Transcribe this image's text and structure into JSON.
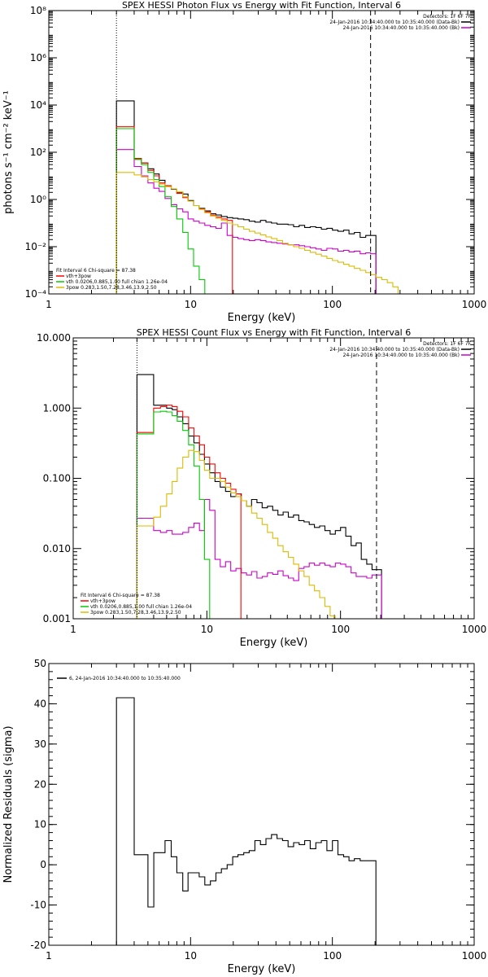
{
  "chart_data": [
    {
      "type": "line",
      "title": "SPEX HESSI Photon Flux vs Energy with Fit Function, Interval 6",
      "xlabel": "Energy (keV)",
      "ylabel": "photons s⁻¹ cm⁻² keV⁻¹",
      "xscale": "log",
      "yscale": "log",
      "xlim": [
        1,
        1000
      ],
      "ylim": [
        0.0001,
        100000000
      ],
      "xticks": [
        1,
        10,
        100,
        1000
      ],
      "xtick_labels": [
        "1",
        "10",
        "100",
        "1000"
      ],
      "yticks": [
        0.0001,
        0.01,
        1,
        100,
        10000,
        1000000,
        100000000
      ],
      "ytick_labels": [
        "10⁻⁴",
        "10⁻²",
        "10⁰",
        "10²",
        "10⁴",
        "10⁶",
        "10⁸"
      ],
      "vlines": [
        {
          "x": 3,
          "style": "dotted"
        },
        {
          "x": 186,
          "style": "dashed"
        }
      ],
      "legend_top": [
        "Detectors: 1F 6F 7F",
        "24-Jan-2016 10:34:40.000 to 10:35:40.000 (Data-Bk)",
        "24-Jan-2016 10:34:40.000 to 10:35:40.000 (Bk)"
      ],
      "legend_bottom": [
        "Fit Interval 6   Chi-square = 87.38",
        "vth+3pow",
        "vth 0.0206,0.885,1.00  full chian 1.26e-04",
        "3pow 0.283,1.50,7.28,3.46,13.9,2.50"
      ],
      "series": [
        {
          "name": "24-Jan-2016 10:34:40.000 to 10:35:40.000 (Data-Bk)",
          "color": "#000000",
          "x": [
            3.0,
            4.0,
            4.5,
            5.0,
            5.5,
            6.0,
            6.6,
            7.3,
            8.0,
            8.8,
            9.6,
            10.5,
            11.5,
            12.6,
            13.8,
            15.1,
            16.5,
            18.1,
            19.8,
            21.6,
            23.7,
            25.9,
            28.4,
            31.1,
            34.0,
            37.2,
            40.7,
            44.5,
            48.7,
            53.3,
            58.3,
            63.8,
            69.8,
            76.4,
            83.6,
            91.5,
            100,
            109.5,
            120,
            131,
            143,
            157,
            172,
            186
          ],
          "y": [
            15000,
            50,
            35,
            20,
            12,
            6.5,
            3.8,
            2.7,
            2.0,
            1.7,
            0.9,
            0.55,
            0.42,
            0.33,
            0.25,
            0.22,
            0.19,
            0.17,
            0.16,
            0.15,
            0.14,
            0.12,
            0.11,
            0.13,
            0.11,
            0.1,
            0.09,
            0.09,
            0.085,
            0.07,
            0.08,
            0.065,
            0.07,
            0.065,
            0.055,
            0.06,
            0.05,
            0.045,
            0.05,
            0.035,
            0.04,
            0.025,
            0.03,
            0.03
          ]
        },
        {
          "name": "24-Jan-2016 10:34:40.000 to 10:35:40.000 (Bk)",
          "color": "#cc00cc",
          "x": [
            3.0,
            4.0,
            4.5,
            5.0,
            5.5,
            6.0,
            6.6,
            7.3,
            8.0,
            8.8,
            9.6,
            10.5,
            11.5,
            12.6,
            13.8,
            15.1,
            16.5,
            18.1,
            19.8,
            21.6,
            23.7,
            25.9,
            28.4,
            31.1,
            34.0,
            37.2,
            40.7,
            44.5,
            48.7,
            53.3,
            58.3,
            63.8,
            69.8,
            76.4,
            83.6,
            91.5,
            100,
            109.5,
            120,
            131,
            143,
            157,
            172,
            186
          ],
          "y": [
            130,
            25,
            10,
            5,
            3,
            2.2,
            1.1,
            0.6,
            0.4,
            0.3,
            0.15,
            0.12,
            0.1,
            0.08,
            0.07,
            0.06,
            0.1,
            0.03,
            0.025,
            0.022,
            0.02,
            0.018,
            0.02,
            0.018,
            0.016,
            0.015,
            0.014,
            0.013,
            0.012,
            0.012,
            0.011,
            0.01,
            0.009,
            0.008,
            0.007,
            0.0085,
            0.008,
            0.0065,
            0.007,
            0.006,
            0.0065,
            0.005,
            0.0055,
            0.005
          ]
        },
        {
          "name": "vth+3pow",
          "color": "#ff0000",
          "x": [
            3.0,
            4.0,
            4.5,
            5.0,
            5.5,
            6.0,
            6.6,
            7.3,
            8.0,
            8.8,
            9.6,
            10.5,
            11.5,
            12.6,
            13.8,
            15.1,
            16.5,
            18.1
          ],
          "y": [
            1200,
            55,
            35,
            17,
            10,
            5,
            3.8,
            2.8,
            1.8,
            1.2,
            0.85,
            0.55,
            0.4,
            0.3,
            0.22,
            0.18,
            0.15,
            0.13
          ]
        },
        {
          "name": "vth",
          "color": "#00cc00",
          "x": [
            3.0,
            4.0,
            4.5,
            5.0,
            5.5,
            6.0,
            6.6,
            7.3,
            8.0,
            8.8,
            9.6,
            10.5,
            11.5,
            12.6,
            13.8
          ],
          "y": [
            1000,
            50,
            30,
            14,
            7,
            3.5,
            1.3,
            0.5,
            0.15,
            0.04,
            0.008,
            0.0015,
            0.0004,
            0.0001,
            0.0001
          ]
        },
        {
          "name": "3pow",
          "color": "#ddbb00",
          "x": [
            3.0,
            4.0,
            4.5,
            5.0,
            5.5,
            6.0,
            6.6,
            7.3,
            8.0,
            8.8,
            9.6,
            10.5,
            11.5,
            12.6,
            13.8,
            15.1,
            16.5,
            18.1,
            19.8,
            21.6,
            23.7,
            25.9,
            28.4,
            31.1,
            34.0,
            37.2,
            40.7,
            44.5,
            48.7,
            53.3,
            58.3,
            63.8,
            69.8,
            76.4,
            83.6,
            91.5,
            100,
            109.5,
            120,
            131,
            143,
            157,
            172,
            186,
            204,
            223,
            244,
            267
          ],
          "y": [
            14,
            11,
            9,
            7,
            5.5,
            4.5,
            3.5,
            2.8,
            2.1,
            1.3,
            0.85,
            0.55,
            0.38,
            0.27,
            0.2,
            0.16,
            0.13,
            0.1,
            0.085,
            0.07,
            0.055,
            0.045,
            0.038,
            0.032,
            0.026,
            0.022,
            0.018,
            0.014,
            0.012,
            0.01,
            0.0085,
            0.007,
            0.0058,
            0.0048,
            0.004,
            0.0032,
            0.0026,
            0.0022,
            0.0018,
            0.0015,
            0.0012,
            0.001,
            0.0008,
            0.00065,
            0.0005,
            0.0004,
            0.0003,
            0.0002
          ]
        }
      ]
    },
    {
      "type": "line",
      "title": "SPEX HESSI Count Flux vs Energy with Fit Function, Interval 6",
      "xlabel": "Energy (keV)",
      "ylabel": "",
      "xscale": "log",
      "yscale": "log",
      "xlim": [
        1,
        1000
      ],
      "ylim": [
        0.001,
        10
      ],
      "xticks": [
        1,
        10,
        100,
        1000
      ],
      "xtick_labels": [
        "1",
        "10",
        "100",
        "1000"
      ],
      "yticks": [
        0.001,
        0.01,
        0.1,
        1,
        10
      ],
      "ytick_labels": [
        "0.001",
        "0.010",
        "0.100",
        "1.000",
        "10.000"
      ],
      "vlines": [
        {
          "x": 3,
          "style": "dotted"
        },
        {
          "x": 186,
          "style": "dashed"
        }
      ],
      "legend_top": [
        "Detectors: 1F 6F 7F",
        "24-Jan-2016 10:34:40.000 to 10:35:40.000 (Data-Bk)",
        "24-Jan-2016 10:34:40.000 to 10:35:40.000 (Bk)"
      ],
      "legend_bottom": [
        "Fit Interval 6   Chi-square = 87.38",
        "vth+3pow",
        "vth 0.0206,0.885,1.00  full chian 1.26e-04",
        "3pow 0.283,1.50,7.28,3.46,13.9,2.50"
      ],
      "series": [
        {
          "name": "24-Jan-2016 10:34:40.000 to 10:35:40.000 (Data-Bk)",
          "color": "#000000",
          "x": [
            3.0,
            4.0,
            4.5,
            5.0,
            5.5,
            6.0,
            6.6,
            7.3,
            8.0,
            8.8,
            9.6,
            10.5,
            11.5,
            12.6,
            13.8,
            15.1,
            16.5,
            18.1,
            19.8,
            21.6,
            23.7,
            25.9,
            28.4,
            31.1,
            34.0,
            37.2,
            40.7,
            44.5,
            48.7,
            53.3,
            58.3,
            63.8,
            69.8,
            76.4,
            83.6,
            91.5,
            100,
            109.5,
            120,
            131,
            143,
            157,
            172,
            186
          ],
          "y": [
            3.0,
            1.1,
            1.1,
            1.0,
            0.95,
            0.75,
            0.6,
            0.4,
            0.32,
            0.22,
            0.16,
            0.12,
            0.09,
            0.075,
            0.065,
            0.055,
            0.06,
            0.048,
            0.04,
            0.05,
            0.045,
            0.038,
            0.04,
            0.035,
            0.03,
            0.033,
            0.028,
            0.03,
            0.025,
            0.024,
            0.022,
            0.02,
            0.021,
            0.018,
            0.016,
            0.018,
            0.02,
            0.015,
            0.011,
            0.012,
            0.007,
            0.006,
            0.005,
            0.005
          ]
        },
        {
          "name": "24-Jan-2016 10:34:40.000 to 10:35:40.000 (Bk)",
          "color": "#cc00cc",
          "x": [
            3.0,
            4.0,
            4.5,
            5.0,
            5.5,
            6.0,
            6.6,
            7.3,
            8.0,
            8.8,
            9.6,
            10.5,
            11.5,
            12.6,
            13.8,
            15.1,
            16.5,
            18.1,
            19.8,
            21.6,
            23.7,
            25.9,
            28.4,
            31.1,
            34.0,
            37.2,
            40.7,
            44.5,
            48.7,
            53.3,
            58.3,
            63.8,
            69.8,
            76.4,
            83.6,
            91.5,
            100,
            109.5,
            120,
            131,
            143,
            157,
            172,
            186
          ],
          "y": [
            0.027,
            0.018,
            0.017,
            0.018,
            0.016,
            0.016,
            0.017,
            0.02,
            0.023,
            0.018,
            0.05,
            0.035,
            0.007,
            0.0055,
            0.0065,
            0.0048,
            0.0052,
            0.0045,
            0.0042,
            0.0047,
            0.0038,
            0.004,
            0.0045,
            0.0043,
            0.0048,
            0.0041,
            0.0038,
            0.0035,
            0.0052,
            0.0055,
            0.0062,
            0.0058,
            0.0062,
            0.0058,
            0.0055,
            0.0062,
            0.006,
            0.0055,
            0.0045,
            0.004,
            0.004,
            0.0038,
            0.0042,
            0.0042
          ]
        },
        {
          "name": "vth+3pow",
          "color": "#ff0000",
          "x": [
            3.0,
            4.0,
            4.5,
            5.0,
            5.5,
            6.0,
            6.6,
            7.3,
            8.0,
            8.8,
            9.6,
            10.5,
            11.5,
            12.6,
            13.8,
            15.1,
            16.5
          ],
          "y": [
            0.45,
            1.0,
            1.05,
            1.1,
            1.05,
            0.9,
            0.75,
            0.52,
            0.4,
            0.3,
            0.2,
            0.16,
            0.12,
            0.1,
            0.085,
            0.07,
            0.06
          ]
        },
        {
          "name": "vth",
          "color": "#00cc00",
          "x": [
            3.0,
            4.0,
            4.5,
            5.0,
            5.5,
            6.0,
            6.6,
            7.3,
            8.0,
            8.8,
            9.6,
            10.5
          ],
          "y": [
            0.43,
            0.88,
            0.9,
            0.88,
            0.78,
            0.65,
            0.48,
            0.3,
            0.15,
            0.05,
            0.007,
            0.001
          ]
        },
        {
          "name": "3pow",
          "color": "#ddbb00",
          "x": [
            3.0,
            4.0,
            4.5,
            5.0,
            5.5,
            6.0,
            6.6,
            7.3,
            8.0,
            8.8,
            9.6,
            10.5,
            11.5,
            12.6,
            13.8,
            15.1,
            16.5,
            18.1,
            19.8,
            21.6,
            23.7,
            25.9,
            28.4,
            31.1,
            34.0,
            37.2,
            40.7,
            44.5,
            48.7,
            53.3,
            58.3,
            63.8,
            69.8,
            76.4,
            83.6
          ],
          "y": [
            0.021,
            0.028,
            0.04,
            0.06,
            0.09,
            0.14,
            0.2,
            0.25,
            0.24,
            0.18,
            0.13,
            0.1,
            0.1,
            0.09,
            0.075,
            0.062,
            0.055,
            0.048,
            0.04,
            0.032,
            0.027,
            0.022,
            0.017,
            0.014,
            0.011,
            0.009,
            0.0075,
            0.006,
            0.0048,
            0.004,
            0.003,
            0.0025,
            0.002,
            0.0015,
            0.0011
          ]
        }
      ]
    },
    {
      "type": "line",
      "title": "",
      "xlabel": "Energy (keV)",
      "ylabel": "Normalized Residuals (sigma)",
      "xscale": "log",
      "yscale": "linear",
      "xlim": [
        1,
        1000
      ],
      "ylim": [
        -20,
        50
      ],
      "xticks": [
        1,
        10,
        100,
        1000
      ],
      "xtick_labels": [
        "1",
        "10",
        "100",
        "1000"
      ],
      "yticks": [
        -20,
        -10,
        0,
        10,
        20,
        30,
        40,
        50
      ],
      "ytick_labels": [
        "-20",
        "-10",
        "0",
        "10",
        "20",
        "30",
        "40",
        "50"
      ],
      "legend": [
        "6, 24-Jan-2016 10:34:40.000 to 10:35:40.000"
      ],
      "series": [
        {
          "name": "6, 24-Jan-2016 10:34:40.000 to 10:35:40.000",
          "color": "#000000",
          "x": [
            3.0,
            4.0,
            4.5,
            5.0,
            5.5,
            6.0,
            6.6,
            7.3,
            8.0,
            8.8,
            9.6,
            10.5,
            11.5,
            12.6,
            13.8,
            15.1,
            16.5,
            18.1,
            19.8,
            21.6,
            23.7,
            25.9,
            28.4,
            31.1,
            34.0,
            37.2,
            40.7,
            44.5,
            48.7,
            53.3,
            58.3,
            63.8,
            69.8,
            76.4,
            83.6,
            91.5,
            100,
            109.5,
            120,
            131,
            143,
            157,
            172,
            186
          ],
          "y": [
            41.5,
            2.5,
            2.5,
            -10.5,
            3.0,
            3.0,
            6.0,
            2.0,
            -2.0,
            -6.5,
            -2.0,
            -2.0,
            -3.0,
            -5.0,
            -4.0,
            -2.0,
            -1.0,
            0.0,
            2.0,
            2.5,
            3.0,
            3.5,
            6.0,
            5.0,
            6.5,
            7.5,
            6.5,
            6.0,
            4.5,
            5.5,
            5.0,
            6.0,
            4.0,
            5.5,
            6.0,
            3.5,
            6.0,
            2.5,
            2.0,
            1.0,
            1.5,
            1.0,
            1.0,
            1.0
          ]
        }
      ]
    }
  ]
}
